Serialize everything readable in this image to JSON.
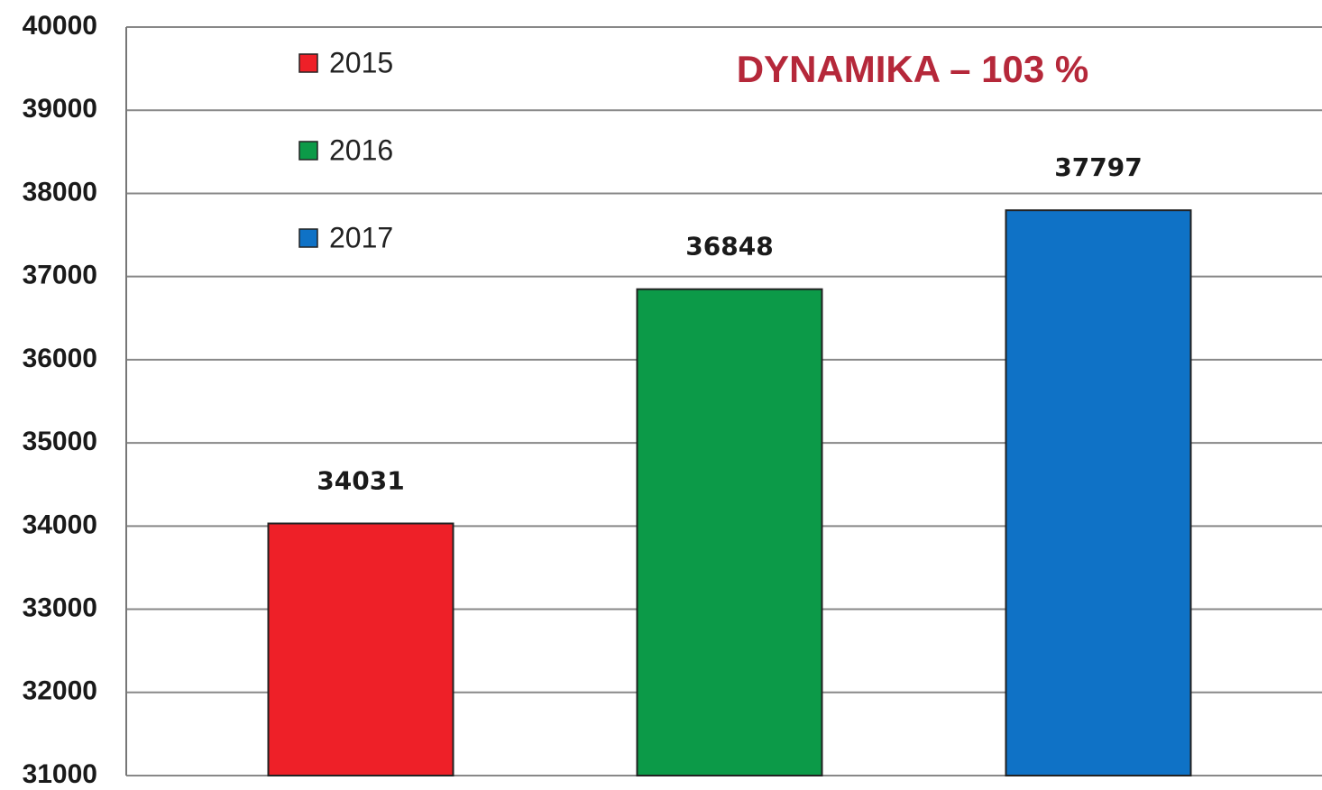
{
  "chart_data": {
    "type": "bar",
    "annotation": "DYNAMIKA – 103 %",
    "categories": [
      null
    ],
    "series": [
      {
        "name": "2015",
        "color": "#ee2028",
        "values": [
          34031
        ]
      },
      {
        "name": "2016",
        "color": "#0c9a48",
        "values": [
          36848
        ]
      },
      {
        "name": "2017",
        "color": "#0f72c6",
        "values": [
          37797
        ]
      }
    ],
    "ylim": [
      31000,
      40000
    ],
    "yticks": [
      31000,
      32000,
      33000,
      34000,
      35000,
      36000,
      37000,
      38000,
      39000,
      40000
    ],
    "grid": true,
    "legend": "top-left"
  }
}
